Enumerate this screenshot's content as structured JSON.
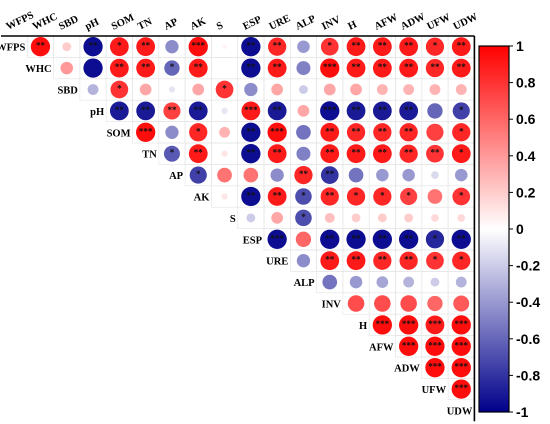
{
  "chart_data": {
    "type": "heatmap",
    "title": "",
    "variables": [
      "WFPS",
      "WHC",
      "SBD",
      "pH",
      "SOM",
      "TN",
      "AP",
      "AK",
      "S",
      "ESP",
      "URE",
      "ALP",
      "INV",
      "H",
      "AFW",
      "ADW",
      "UFW",
      "UDW"
    ],
    "value_range": [
      -1,
      1
    ],
    "colorbar_ticks": [
      "1",
      "0.8",
      "0.6",
      "0.4",
      "0.2",
      "0",
      "-0.2",
      "-0.4",
      "-0.6",
      "-0.8",
      "-1"
    ],
    "colors": {
      "positive": "#ff0000",
      "neutral": "#ffffff",
      "negative": "#00008b"
    },
    "cells": [
      {
        "r": 0,
        "c": 1,
        "v": 0.95,
        "sig": "**"
      },
      {
        "r": 0,
        "c": 2,
        "v": 0.2,
        "sig": ""
      },
      {
        "r": 0,
        "c": 3,
        "v": -0.95,
        "sig": "**"
      },
      {
        "r": 0,
        "c": 4,
        "v": 0.9,
        "sig": "*"
      },
      {
        "r": 0,
        "c": 5,
        "v": 0.9,
        "sig": "**"
      },
      {
        "r": 0,
        "c": 6,
        "v": -0.45,
        "sig": ""
      },
      {
        "r": 0,
        "c": 7,
        "v": 0.95,
        "sig": "***"
      },
      {
        "r": 0,
        "c": 8,
        "v": 0.05,
        "sig": ""
      },
      {
        "r": 0,
        "c": 9,
        "v": -0.95,
        "sig": "**"
      },
      {
        "r": 0,
        "c": 10,
        "v": 0.85,
        "sig": "**"
      },
      {
        "r": 0,
        "c": 11,
        "v": -0.4,
        "sig": ""
      },
      {
        "r": 0,
        "c": 12,
        "v": 0.8,
        "sig": "*"
      },
      {
        "r": 0,
        "c": 13,
        "v": 0.9,
        "sig": "**"
      },
      {
        "r": 0,
        "c": 14,
        "v": 0.9,
        "sig": "**"
      },
      {
        "r": 0,
        "c": 15,
        "v": 0.9,
        "sig": "**"
      },
      {
        "r": 0,
        "c": 16,
        "v": 0.85,
        "sig": "*"
      },
      {
        "r": 0,
        "c": 17,
        "v": 0.9,
        "sig": "**"
      },
      {
        "r": 1,
        "c": 2,
        "v": 0.4,
        "sig": ""
      },
      {
        "r": 1,
        "c": 3,
        "v": -0.95,
        "sig": ""
      },
      {
        "r": 1,
        "c": 4,
        "v": 0.9,
        "sig": "**"
      },
      {
        "r": 1,
        "c": 5,
        "v": 0.9,
        "sig": "**"
      },
      {
        "r": 1,
        "c": 6,
        "v": -0.6,
        "sig": "*"
      },
      {
        "r": 1,
        "c": 7,
        "v": 0.9,
        "sig": "**"
      },
      {
        "r": 1,
        "c": 8,
        "v": 0.0,
        "sig": ""
      },
      {
        "r": 1,
        "c": 9,
        "v": -0.95,
        "sig": "**"
      },
      {
        "r": 1,
        "c": 10,
        "v": 0.9,
        "sig": "**"
      },
      {
        "r": 1,
        "c": 11,
        "v": -0.5,
        "sig": ""
      },
      {
        "r": 1,
        "c": 12,
        "v": 0.95,
        "sig": "***"
      },
      {
        "r": 1,
        "c": 13,
        "v": 0.9,
        "sig": "**"
      },
      {
        "r": 1,
        "c": 14,
        "v": 0.9,
        "sig": "**"
      },
      {
        "r": 1,
        "c": 15,
        "v": 0.9,
        "sig": "**"
      },
      {
        "r": 1,
        "c": 16,
        "v": 0.85,
        "sig": "**"
      },
      {
        "r": 1,
        "c": 17,
        "v": 0.9,
        "sig": "**"
      },
      {
        "r": 2,
        "c": 3,
        "v": -0.3,
        "sig": ""
      },
      {
        "r": 2,
        "c": 4,
        "v": 0.8,
        "sig": "*"
      },
      {
        "r": 2,
        "c": 5,
        "v": 0.35,
        "sig": ""
      },
      {
        "r": 2,
        "c": 6,
        "v": -0.1,
        "sig": ""
      },
      {
        "r": 2,
        "c": 7,
        "v": 0.35,
        "sig": ""
      },
      {
        "r": 2,
        "c": 8,
        "v": 0.8,
        "sig": "*"
      },
      {
        "r": 2,
        "c": 9,
        "v": -0.45,
        "sig": ""
      },
      {
        "r": 2,
        "c": 10,
        "v": 0.35,
        "sig": ""
      },
      {
        "r": 2,
        "c": 11,
        "v": -0.2,
        "sig": ""
      },
      {
        "r": 2,
        "c": 12,
        "v": 0.35,
        "sig": ""
      },
      {
        "r": 2,
        "c": 13,
        "v": 0.35,
        "sig": ""
      },
      {
        "r": 2,
        "c": 14,
        "v": 0.3,
        "sig": ""
      },
      {
        "r": 2,
        "c": 15,
        "v": 0.3,
        "sig": ""
      },
      {
        "r": 2,
        "c": 16,
        "v": 0.3,
        "sig": ""
      },
      {
        "r": 2,
        "c": 17,
        "v": 0.3,
        "sig": ""
      },
      {
        "r": 3,
        "c": 4,
        "v": -0.9,
        "sig": "**"
      },
      {
        "r": 3,
        "c": 5,
        "v": -0.9,
        "sig": "**"
      },
      {
        "r": 3,
        "c": 6,
        "v": 0.75,
        "sig": "**"
      },
      {
        "r": 3,
        "c": 7,
        "v": -0.9,
        "sig": "**"
      },
      {
        "r": 3,
        "c": 8,
        "v": -0.1,
        "sig": ""
      },
      {
        "r": 3,
        "c": 9,
        "v": 0.9,
        "sig": "***"
      },
      {
        "r": 3,
        "c": 10,
        "v": -0.9,
        "sig": "**"
      },
      {
        "r": 3,
        "c": 11,
        "v": 0.35,
        "sig": ""
      },
      {
        "r": 3,
        "c": 12,
        "v": -0.95,
        "sig": "***"
      },
      {
        "r": 3,
        "c": 13,
        "v": -0.9,
        "sig": "**"
      },
      {
        "r": 3,
        "c": 14,
        "v": -0.9,
        "sig": "**"
      },
      {
        "r": 3,
        "c": 15,
        "v": -0.9,
        "sig": "**"
      },
      {
        "r": 3,
        "c": 16,
        "v": -0.6,
        "sig": ""
      },
      {
        "r": 3,
        "c": 17,
        "v": -0.75,
        "sig": "*"
      },
      {
        "r": 4,
        "c": 5,
        "v": 0.95,
        "sig": "***"
      },
      {
        "r": 4,
        "c": 6,
        "v": -0.45,
        "sig": ""
      },
      {
        "r": 4,
        "c": 7,
        "v": 0.85,
        "sig": "*"
      },
      {
        "r": 4,
        "c": 8,
        "v": 0.3,
        "sig": ""
      },
      {
        "r": 4,
        "c": 9,
        "v": -0.95,
        "sig": "**"
      },
      {
        "r": 4,
        "c": 10,
        "v": 0.95,
        "sig": "***"
      },
      {
        "r": 4,
        "c": 11,
        "v": -0.55,
        "sig": ""
      },
      {
        "r": 4,
        "c": 12,
        "v": 0.9,
        "sig": "**"
      },
      {
        "r": 4,
        "c": 13,
        "v": 0.85,
        "sig": "**"
      },
      {
        "r": 4,
        "c": 14,
        "v": 0.85,
        "sig": "**"
      },
      {
        "r": 4,
        "c": 15,
        "v": 0.85,
        "sig": "**"
      },
      {
        "r": 4,
        "c": 16,
        "v": 0.75,
        "sig": ""
      },
      {
        "r": 4,
        "c": 17,
        "v": 0.85,
        "sig": "*"
      },
      {
        "r": 5,
        "c": 6,
        "v": -0.65,
        "sig": "*"
      },
      {
        "r": 5,
        "c": 7,
        "v": 0.9,
        "sig": "**"
      },
      {
        "r": 5,
        "c": 8,
        "v": 0.1,
        "sig": ""
      },
      {
        "r": 5,
        "c": 9,
        "v": -0.95,
        "sig": "**"
      },
      {
        "r": 5,
        "c": 10,
        "v": 0.9,
        "sig": "**"
      },
      {
        "r": 5,
        "c": 11,
        "v": -0.5,
        "sig": ""
      },
      {
        "r": 5,
        "c": 12,
        "v": 0.9,
        "sig": "**"
      },
      {
        "r": 5,
        "c": 13,
        "v": 0.9,
        "sig": "**"
      },
      {
        "r": 5,
        "c": 14,
        "v": 0.9,
        "sig": "**"
      },
      {
        "r": 5,
        "c": 15,
        "v": 0.85,
        "sig": "**"
      },
      {
        "r": 5,
        "c": 16,
        "v": 0.8,
        "sig": "**"
      },
      {
        "r": 5,
        "c": 17,
        "v": 0.9,
        "sig": "*"
      },
      {
        "r": 6,
        "c": 7,
        "v": -0.75,
        "sig": "*"
      },
      {
        "r": 6,
        "c": 8,
        "v": 0.55,
        "sig": ""
      },
      {
        "r": 6,
        "c": 9,
        "v": 0.55,
        "sig": ""
      },
      {
        "r": 6,
        "c": 10,
        "v": -0.45,
        "sig": ""
      },
      {
        "r": 6,
        "c": 11,
        "v": 0.85,
        "sig": "**"
      },
      {
        "r": 6,
        "c": 12,
        "v": -0.8,
        "sig": "**"
      },
      {
        "r": 6,
        "c": 13,
        "v": -0.55,
        "sig": ""
      },
      {
        "r": 6,
        "c": 14,
        "v": -0.4,
        "sig": ""
      },
      {
        "r": 6,
        "c": 15,
        "v": -0.4,
        "sig": ""
      },
      {
        "r": 6,
        "c": 16,
        "v": -0.15,
        "sig": ""
      },
      {
        "r": 6,
        "c": 17,
        "v": -0.4,
        "sig": ""
      },
      {
        "r": 7,
        "c": 8,
        "v": 0.1,
        "sig": ""
      },
      {
        "r": 7,
        "c": 9,
        "v": -0.95,
        "sig": "**"
      },
      {
        "r": 7,
        "c": 10,
        "v": 0.9,
        "sig": "**"
      },
      {
        "r": 7,
        "c": 11,
        "v": -0.7,
        "sig": "*"
      },
      {
        "r": 7,
        "c": 12,
        "v": 0.85,
        "sig": "**"
      },
      {
        "r": 7,
        "c": 13,
        "v": 0.85,
        "sig": "*"
      },
      {
        "r": 7,
        "c": 14,
        "v": 0.85,
        "sig": "*"
      },
      {
        "r": 7,
        "c": 15,
        "v": 0.75,
        "sig": "*"
      },
      {
        "r": 7,
        "c": 16,
        "v": 0.55,
        "sig": ""
      },
      {
        "r": 7,
        "c": 17,
        "v": 0.8,
        "sig": "*"
      },
      {
        "r": 8,
        "c": 9,
        "v": -0.2,
        "sig": ""
      },
      {
        "r": 8,
        "c": 10,
        "v": 0.35,
        "sig": ""
      },
      {
        "r": 8,
        "c": 11,
        "v": -0.7,
        "sig": "*"
      },
      {
        "r": 8,
        "c": 12,
        "v": 0.25,
        "sig": ""
      },
      {
        "r": 8,
        "c": 13,
        "v": 0.2,
        "sig": ""
      },
      {
        "r": 8,
        "c": 14,
        "v": 0.2,
        "sig": ""
      },
      {
        "r": 8,
        "c": 15,
        "v": 0.2,
        "sig": ""
      },
      {
        "r": 8,
        "c": 16,
        "v": 0.15,
        "sig": ""
      },
      {
        "r": 8,
        "c": 17,
        "v": 0.15,
        "sig": ""
      },
      {
        "r": 9,
        "c": 10,
        "v": -0.95,
        "sig": "***"
      },
      {
        "r": 9,
        "c": 11,
        "v": 0.6,
        "sig": ""
      },
      {
        "r": 9,
        "c": 12,
        "v": -0.95,
        "sig": "**"
      },
      {
        "r": 9,
        "c": 13,
        "v": -0.95,
        "sig": "**"
      },
      {
        "r": 9,
        "c": 14,
        "v": -0.95,
        "sig": "**"
      },
      {
        "r": 9,
        "c": 15,
        "v": -0.95,
        "sig": "**"
      },
      {
        "r": 9,
        "c": 16,
        "v": -0.85,
        "sig": "*"
      },
      {
        "r": 9,
        "c": 17,
        "v": -0.95,
        "sig": "**"
      },
      {
        "r": 10,
        "c": 11,
        "v": -0.45,
        "sig": ""
      },
      {
        "r": 10,
        "c": 12,
        "v": 0.9,
        "sig": "**"
      },
      {
        "r": 10,
        "c": 13,
        "v": 0.9,
        "sig": "**"
      },
      {
        "r": 10,
        "c": 14,
        "v": 0.85,
        "sig": "**"
      },
      {
        "r": 10,
        "c": 15,
        "v": 0.85,
        "sig": "**"
      },
      {
        "r": 10,
        "c": 16,
        "v": 0.8,
        "sig": "*"
      },
      {
        "r": 10,
        "c": 17,
        "v": 0.85,
        "sig": "*"
      },
      {
        "r": 11,
        "c": 12,
        "v": -0.55,
        "sig": ""
      },
      {
        "r": 11,
        "c": 13,
        "v": -0.4,
        "sig": ""
      },
      {
        "r": 11,
        "c": 14,
        "v": -0.35,
        "sig": ""
      },
      {
        "r": 11,
        "c": 15,
        "v": -0.3,
        "sig": ""
      },
      {
        "r": 11,
        "c": 16,
        "v": -0.2,
        "sig": ""
      },
      {
        "r": 11,
        "c": 17,
        "v": -0.3,
        "sig": ""
      },
      {
        "r": 12,
        "c": 13,
        "v": 0.7,
        "sig": ""
      },
      {
        "r": 12,
        "c": 14,
        "v": 0.7,
        "sig": ""
      },
      {
        "r": 12,
        "c": 15,
        "v": 0.7,
        "sig": ""
      },
      {
        "r": 12,
        "c": 16,
        "v": 0.6,
        "sig": ""
      },
      {
        "r": 12,
        "c": 17,
        "v": 0.65,
        "sig": ""
      },
      {
        "r": 13,
        "c": 14,
        "v": 0.95,
        "sig": "***"
      },
      {
        "r": 13,
        "c": 15,
        "v": 0.95,
        "sig": "***"
      },
      {
        "r": 13,
        "c": 16,
        "v": 0.9,
        "sig": "***"
      },
      {
        "r": 13,
        "c": 17,
        "v": 0.95,
        "sig": "***"
      },
      {
        "r": 14,
        "c": 15,
        "v": 0.95,
        "sig": "***"
      },
      {
        "r": 14,
        "c": 16,
        "v": 0.95,
        "sig": "***"
      },
      {
        "r": 14,
        "c": 17,
        "v": 0.95,
        "sig": "***"
      },
      {
        "r": 15,
        "c": 16,
        "v": 0.95,
        "sig": "***"
      },
      {
        "r": 15,
        "c": 17,
        "v": 0.95,
        "sig": "***"
      },
      {
        "r": 16,
        "c": 17,
        "v": 0.95,
        "sig": "***"
      }
    ]
  }
}
